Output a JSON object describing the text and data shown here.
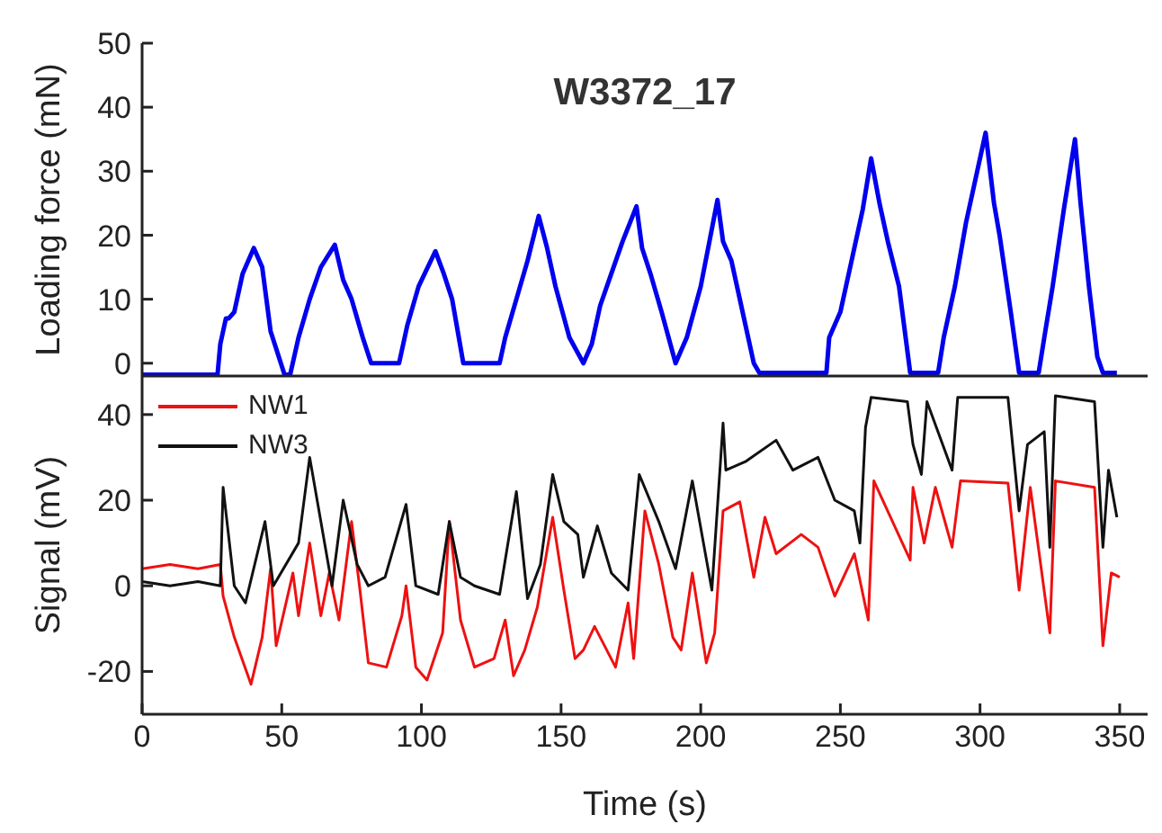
{
  "chart_data": [
    {
      "type": "line",
      "title": "W3372_17",
      "ylabel": "Loading force (mN)",
      "xlim": [
        0,
        360
      ],
      "xticks": [
        0,
        50,
        100,
        150,
        200,
        250,
        300,
        350
      ],
      "ylim": [
        -2,
        50
      ],
      "yticks": [
        0,
        10,
        20,
        30,
        40,
        50
      ],
      "tick_labels": "y",
      "series": [
        {
          "color": "#0000ee",
          "x": [
            0,
            10,
            20,
            27,
            28,
            30,
            31,
            33,
            36,
            40,
            43,
            46,
            51,
            53,
            56,
            60,
            64,
            69,
            72,
            75,
            79,
            82,
            86,
            90,
            92,
            95,
            99,
            105,
            108,
            111,
            115,
            120,
            128,
            130,
            134,
            138,
            142,
            145,
            148,
            153,
            158,
            161,
            164,
            168,
            172,
            177,
            179,
            182,
            186,
            191,
            195,
            200,
            206,
            208,
            211,
            215,
            219,
            221,
            230,
            240,
            245,
            246,
            250,
            254,
            258,
            261,
            264,
            267,
            271,
            275,
            280,
            285,
            287,
            291,
            295,
            299,
            302,
            305,
            307,
            311,
            314,
            318,
            321,
            323,
            326,
            330,
            334,
            336,
            339,
            342,
            344,
            349
          ],
          "values": [
            -1.8,
            -1.8,
            -1.8,
            -1.8,
            3,
            7,
            7,
            8,
            14,
            18,
            15,
            5,
            -1.8,
            -1.8,
            4,
            10,
            15,
            18.5,
            13,
            10,
            4,
            0,
            0,
            0,
            0,
            6,
            12,
            17.5,
            14,
            10,
            0,
            0,
            0,
            4,
            10,
            16,
            23,
            18,
            12,
            4,
            0,
            3,
            9,
            14,
            19,
            24.5,
            18,
            14,
            8,
            0,
            4,
            12,
            25.5,
            19,
            16,
            8,
            0,
            -1.5,
            -1.5,
            -1.5,
            -1.5,
            4,
            8,
            16,
            24,
            32,
            25,
            19,
            12,
            -1.5,
            -1.5,
            -1.5,
            4,
            12,
            22,
            30,
            36,
            25,
            20,
            8,
            -1.5,
            -1.5,
            -1.5,
            4,
            12,
            24,
            35,
            25,
            12,
            1,
            -1.5,
            -1.5
          ]
        }
      ]
    },
    {
      "type": "line",
      "xlabel": "Time (s)",
      "ylabel": "Signal (mV)",
      "xlim": [
        0,
        360
      ],
      "xticks": [
        0,
        50,
        100,
        150,
        200,
        250,
        300,
        350
      ],
      "ylim": [
        -30,
        49
      ],
      "yticks": [
        -20,
        0,
        20,
        40
      ],
      "legend": "top left",
      "series": [
        {
          "name": "NW1",
          "color": "#ee1111",
          "x": [
            0,
            10,
            20,
            28,
            29,
            33,
            39,
            43,
            46,
            48,
            54,
            56,
            60,
            64,
            67,
            70.5,
            75,
            78,
            81,
            87.5,
            93,
            94.5,
            98,
            102,
            107.6,
            110,
            114,
            119,
            126,
            130,
            133,
            137,
            141.5,
            147,
            151,
            155,
            158,
            162,
            169.5,
            174,
            176,
            180,
            185,
            190,
            193,
            197,
            202,
            205,
            208,
            214,
            219,
            223,
            227,
            236,
            242,
            248,
            255,
            260,
            262,
            275,
            276,
            280,
            284,
            290,
            293,
            310,
            314,
            318,
            325,
            327,
            341,
            344,
            347,
            350
          ],
          "values": [
            4,
            5,
            4,
            5,
            -2.4,
            -12,
            -23,
            -12,
            4,
            -14,
            3,
            -7,
            10,
            -7,
            3,
            -8,
            15,
            -1,
            -18,
            -19,
            -7,
            0,
            -19,
            -22,
            -11,
            15,
            -8,
            -19,
            -17,
            -8,
            -21,
            -15,
            -5,
            16,
            -1,
            -17,
            -15,
            -9.5,
            -19,
            -4,
            -17,
            17.5,
            5,
            -12,
            -15,
            3,
            -18,
            -11,
            17.5,
            19.6,
            2,
            16,
            7.5,
            12,
            9,
            -2.4,
            7.5,
            -8,
            24.5,
            6,
            23,
            10,
            23,
            9,
            24.5,
            24,
            -1,
            23,
            -11,
            24.5,
            23,
            -14,
            3,
            2
          ]
        },
        {
          "name": "NW3",
          "color": "#111111",
          "x": [
            0,
            10,
            20,
            28,
            29,
            33,
            37,
            44,
            47,
            56,
            60,
            64,
            68,
            72,
            77,
            81,
            87,
            94.5,
            98,
            106,
            110,
            114,
            119,
            128,
            134,
            138,
            142.6,
            147,
            151,
            156,
            158,
            163,
            168,
            174,
            178,
            185,
            191,
            197,
            204,
            208,
            209,
            216,
            227,
            233,
            242,
            248,
            255,
            257,
            259,
            261,
            274,
            276,
            279,
            281,
            290,
            292,
            310,
            314,
            317,
            323,
            325,
            327,
            341,
            344,
            346,
            349
          ],
          "values": [
            1,
            0,
            1,
            0,
            23,
            0,
            -4,
            15,
            0,
            10,
            30,
            15,
            0,
            20,
            5,
            0,
            2,
            19,
            0,
            -2,
            15,
            2,
            0,
            -2,
            22,
            -3,
            5,
            26,
            15,
            12,
            2,
            14,
            3,
            -1,
            26,
            15,
            4,
            24.5,
            -1,
            38,
            27,
            29,
            34,
            27,
            30,
            20,
            17.5,
            10,
            37,
            44,
            43,
            33,
            26,
            43,
            27,
            44,
            44,
            17.5,
            33,
            36,
            9,
            44.4,
            43,
            9,
            27,
            16
          ]
        }
      ]
    }
  ]
}
